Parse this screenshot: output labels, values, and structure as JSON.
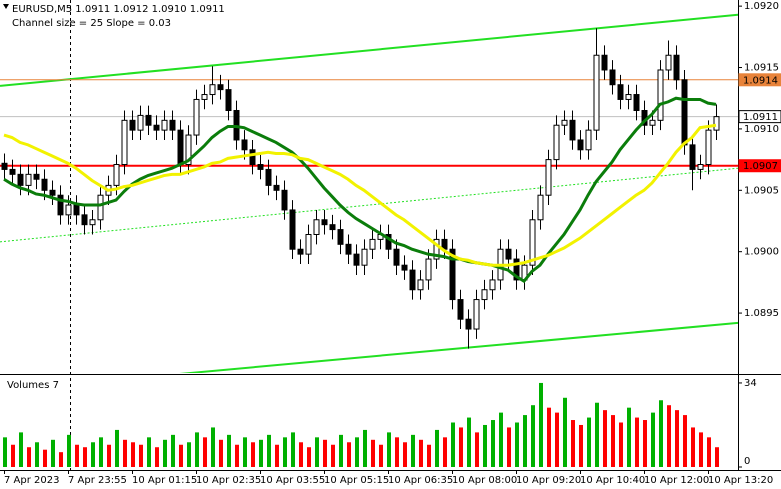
{
  "chart_data": [
    {
      "type": "candlestick",
      "title": "EURUSD,M5  1.0911 1.0912 1.0910 1.0911",
      "subtitle": "Channel size = 25 Slope = 0.03",
      "categories": [
        "7 Apr 2023",
        null,
        null,
        null,
        null,
        null,
        null,
        null,
        "7 Apr 23:55",
        null,
        null,
        null,
        null,
        null,
        null,
        null,
        "10 Apr 01:15",
        null,
        null,
        null,
        null,
        null,
        null,
        null,
        "10 Apr 02:35",
        null,
        null,
        null,
        null,
        null,
        null,
        null,
        "10 Apr 03:55",
        null,
        null,
        null,
        null,
        null,
        null,
        null,
        "10 Apr 05:15",
        null,
        null,
        null,
        null,
        null,
        null,
        null,
        "10 Apr 06:35",
        null,
        null,
        null,
        null,
        null,
        null,
        null,
        "10 Apr 08:00",
        null,
        null,
        null,
        null,
        null,
        null,
        null,
        "10 Apr 09:20",
        null,
        null,
        null,
        null,
        null,
        null,
        null,
        "10 Apr 10:40",
        null,
        null,
        null,
        null,
        null,
        null,
        null,
        "10 Apr 12:00",
        null,
        null,
        null,
        null,
        null,
        null,
        null,
        "10 Apr 13:20",
        null
      ],
      "open": [
        1.09072,
        1.09067,
        1.09063,
        1.09054,
        1.09063,
        1.09059,
        1.0905,
        1.09046,
        1.0903,
        1.09038,
        1.0903,
        1.09022,
        1.09026,
        1.09046,
        1.09054,
        1.09071,
        1.09107,
        1.09099,
        1.09111,
        1.09103,
        1.09099,
        1.09107,
        1.09099,
        1.09071,
        1.09095,
        1.09124,
        1.09128,
        1.09136,
        1.09132,
        1.09115,
        1.09091,
        1.09083,
        1.09071,
        1.09067,
        1.09054,
        1.0905,
        1.09034,
        1.09002,
        1.08998,
        1.09014,
        1.09026,
        1.09022,
        1.09018,
        1.09006,
        1.08998,
        1.08989,
        1.09002,
        1.0901,
        1.09014,
        1.09002,
        1.08989,
        1.08985,
        1.08969,
        1.08977,
        1.08994,
        1.0901,
        1.09002,
        1.08961,
        1.08945,
        1.08937,
        1.08961,
        1.08969,
        1.08977,
        1.09002,
        1.08994,
        1.08977,
        1.08989,
        1.09026,
        1.09046,
        1.09075,
        1.09103,
        1.09107,
        1.09091,
        1.09083,
        1.09099,
        1.0916,
        1.09148,
        1.09136,
        1.09124,
        1.09128,
        1.09115,
        1.09103,
        1.09107,
        1.09148,
        1.0916,
        1.0914,
        1.09087,
        1.09067,
        1.09071,
        1.09099
      ],
      "high": [
        1.0908,
        1.09075,
        1.09071,
        1.09071,
        1.09071,
        1.09067,
        1.09058,
        1.09054,
        1.09046,
        1.09046,
        1.09038,
        1.09034,
        1.09054,
        1.09062,
        1.09079,
        1.09115,
        1.09115,
        1.09119,
        1.09119,
        1.09111,
        1.09115,
        1.09115,
        1.09107,
        1.09103,
        1.09132,
        1.09136,
        1.09151,
        1.09144,
        1.0914,
        1.09123,
        1.09099,
        1.09091,
        1.09079,
        1.09075,
        1.09062,
        1.09058,
        1.09042,
        1.0901,
        1.09022,
        1.09034,
        1.09034,
        1.0903,
        1.09026,
        1.09014,
        1.09006,
        1.0901,
        1.09018,
        1.09022,
        1.09022,
        1.0901,
        1.08997,
        1.08993,
        1.08985,
        1.09002,
        1.09018,
        1.09018,
        1.0901,
        1.08969,
        1.08953,
        1.08969,
        1.08977,
        1.08985,
        1.0901,
        1.0901,
        1.09002,
        1.08997,
        1.09034,
        1.09054,
        1.09083,
        1.09111,
        1.09115,
        1.09115,
        1.09099,
        1.09107,
        1.09182,
        1.09168,
        1.09156,
        1.09144,
        1.09136,
        1.09136,
        1.09123,
        1.09115,
        1.09156,
        1.09172,
        1.09168,
        1.09148,
        1.09095,
        1.09079,
        1.09107,
        1.0912
      ],
      "low": [
        1.09059,
        1.09055,
        1.09046,
        1.09046,
        1.09051,
        1.09042,
        1.09038,
        1.09022,
        1.09022,
        1.09022,
        1.09014,
        1.09014,
        1.09018,
        1.09038,
        1.09046,
        1.09063,
        1.09091,
        1.09091,
        1.09095,
        1.09091,
        1.09091,
        1.09091,
        1.09063,
        1.09063,
        1.09087,
        1.09116,
        1.0912,
        1.09124,
        1.09107,
        1.09083,
        1.09075,
        1.09063,
        1.09059,
        1.09046,
        1.09042,
        1.09026,
        1.08994,
        1.0899,
        1.0899,
        1.09006,
        1.09014,
        1.0901,
        1.08998,
        1.0899,
        1.08981,
        1.08981,
        1.08994,
        1.09002,
        1.08994,
        1.08981,
        1.08977,
        1.08961,
        1.08961,
        1.08969,
        1.08986,
        1.08994,
        1.08953,
        1.08937,
        1.08921,
        1.08929,
        1.08953,
        1.08961,
        1.08969,
        1.08986,
        1.08969,
        1.08969,
        1.08981,
        1.09018,
        1.09038,
        1.09067,
        1.09095,
        1.09083,
        1.09075,
        1.09075,
        1.09091,
        1.0914,
        1.09128,
        1.09116,
        1.09116,
        1.09107,
        1.09095,
        1.09095,
        1.09099,
        1.0914,
        1.09132,
        1.09079,
        1.0905,
        1.09059,
        1.09063,
        1.09091
      ],
      "close": [
        1.09067,
        1.09063,
        1.09054,
        1.09063,
        1.09059,
        1.0905,
        1.09046,
        1.0903,
        1.09038,
        1.0903,
        1.09022,
        1.09026,
        1.09046,
        1.09054,
        1.09071,
        1.09107,
        1.09099,
        1.09111,
        1.09103,
        1.09099,
        1.09107,
        1.09099,
        1.09071,
        1.09095,
        1.09124,
        1.09128,
        1.09136,
        1.09132,
        1.09115,
        1.09091,
        1.09083,
        1.09071,
        1.09067,
        1.09054,
        1.0905,
        1.09034,
        1.09002,
        1.08998,
        1.09014,
        1.09026,
        1.09022,
        1.09018,
        1.09006,
        1.08998,
        1.08989,
        1.09002,
        1.0901,
        1.09014,
        1.09002,
        1.08989,
        1.08985,
        1.08969,
        1.08977,
        1.08994,
        1.0901,
        1.09002,
        1.08961,
        1.08945,
        1.08937,
        1.08961,
        1.08969,
        1.08977,
        1.09002,
        1.08994,
        1.08977,
        1.08989,
        1.09026,
        1.09046,
        1.09075,
        1.09103,
        1.09107,
        1.09091,
        1.09083,
        1.09099,
        1.0916,
        1.09148,
        1.09136,
        1.09124,
        1.09128,
        1.09115,
        1.09103,
        1.09107,
        1.09148,
        1.0916,
        1.0914,
        1.09087,
        1.09067,
        1.09071,
        1.09099,
        1.0911
      ],
      "series": [
        {
          "color": "#0b7d0b",
          "values": [
            1.09059,
            1.09055,
            1.09052,
            1.0905,
            1.09047,
            1.09046,
            1.09044,
            1.09042,
            1.09041,
            1.09039,
            1.09038,
            1.09038,
            1.09038,
            1.0904,
            1.09042,
            1.09049,
            1.09055,
            1.09059,
            1.09062,
            1.09064,
            1.09066,
            1.09068,
            1.09071,
            1.09074,
            1.0908,
            1.09086,
            1.09093,
            1.09098,
            1.09102,
            1.09102,
            1.09101,
            1.09098,
            1.09095,
            1.09092,
            1.09089,
            1.09085,
            1.09081,
            1.09075,
            1.09068,
            1.0906,
            1.09052,
            1.09045,
            1.09038,
            1.09032,
            1.09027,
            1.09023,
            1.09019,
            1.09015,
            1.09011,
            1.09007,
            1.09005,
            1.09002,
            1.09,
            1.08998,
            1.08997,
            1.08996,
            1.08994,
            1.08994,
            1.08992,
            1.08991,
            1.0899,
            1.08989,
            1.08987,
            1.08985,
            1.0898,
            1.08976,
            1.08984,
            1.08989,
            1.08998,
            1.09006,
            1.09014,
            1.09024,
            1.09034,
            1.09046,
            1.09057,
            1.09065,
            1.09073,
            1.09083,
            1.09091,
            1.09099,
            1.09106,
            1.09112,
            1.0912,
            1.09122,
            1.09125,
            1.09124,
            1.09124,
            1.09124,
            1.09121,
            1.0912
          ]
        },
        {
          "color": "#f2f200",
          "values": [
            1.09095,
            1.09093,
            1.09089,
            1.09087,
            1.09084,
            1.09081,
            1.09078,
            1.09075,
            1.09072,
            1.09068,
            1.09063,
            1.09058,
            1.09054,
            1.0905,
            1.09051,
            1.09053,
            1.09054,
            1.09056,
            1.09058,
            1.0906,
            1.09062,
            1.09063,
            1.09063,
            1.09065,
            1.09067,
            1.09069,
            1.09072,
            1.09073,
            1.09076,
            1.09077,
            1.09078,
            1.09079,
            1.0908,
            1.09081,
            1.0908,
            1.0908,
            1.09079,
            1.09076,
            1.09075,
            1.09072,
            1.09069,
            1.09066,
            1.09063,
            1.09059,
            1.09054,
            1.0905,
            1.09045,
            1.0904,
            1.09035,
            1.0903,
            1.09026,
            1.09021,
            1.09016,
            1.09011,
            1.09006,
            1.09001,
            1.08997,
            1.08994,
            1.08993,
            1.08991,
            1.0899,
            1.08989,
            1.08989,
            1.08989,
            1.0899,
            1.08991,
            1.08993,
            1.08995,
            1.08997,
            1.09,
            1.09003,
            1.09007,
            1.09011,
            1.09016,
            1.09021,
            1.09026,
            1.09031,
            1.09036,
            1.09041,
            1.09046,
            1.0905,
            1.09056,
            1.09064,
            1.09072,
            1.09081,
            1.09088,
            1.09093,
            1.09101,
            1.09102,
            1.09103
          ]
        }
      ],
      "channel": {
        "color": "#22e022",
        "upper": [
          1.09135,
          1.09193
        ],
        "middle": [
          1.09008,
          1.09068
        ],
        "lower": [
          1.08887,
          1.08942
        ]
      },
      "levels": [
        {
          "value": 1.0914,
          "color": "#e8833a",
          "text_color": "#ffffff"
        },
        {
          "value": 1.0911,
          "color": "#c0c0c0",
          "text_color": "#000000"
        },
        {
          "value": 1.0907,
          "color": "#ff0000",
          "text_color": "#ffffff"
        }
      ],
      "ylim": [
        1.08902,
        1.09205
      ],
      "yticks": [
        {
          "value": 1.092,
          "label": "1.0920"
        },
        1.0915,
        {
          "value": 1.091,
          "label": "1.0910"
        },
        1.0905,
        {
          "value": 1.09,
          "label": "1.0900"
        },
        1.0895
      ],
      "up_color": "#ffffff",
      "down_color": "#000000"
    },
    {
      "type": "bar",
      "title": "Volumes 7",
      "values": [
        12,
        9,
        14,
        8,
        10,
        7,
        11,
        6,
        13,
        9,
        8,
        10,
        12,
        9,
        15,
        11,
        10,
        9,
        12,
        8,
        11,
        13,
        9,
        10,
        14,
        12,
        16,
        11,
        13,
        9,
        12,
        10,
        11,
        13,
        9,
        12,
        14,
        10,
        8,
        12,
        11,
        9,
        13,
        10,
        12,
        15,
        11,
        9,
        14,
        12,
        10,
        13,
        11,
        9,
        15,
        12,
        18,
        16,
        20,
        14,
        17,
        19,
        22,
        16,
        18,
        21,
        25,
        34,
        24,
        22,
        28,
        19,
        17,
        20,
        26,
        23,
        21,
        18,
        24,
        20,
        19,
        22,
        27,
        25,
        23,
        21,
        16,
        14,
        12,
        8
      ],
      "ylim": [
        0,
        36
      ],
      "yticks": [
        0,
        34
      ],
      "up_color": "#00b000",
      "down_color": "#ff0000"
    }
  ]
}
